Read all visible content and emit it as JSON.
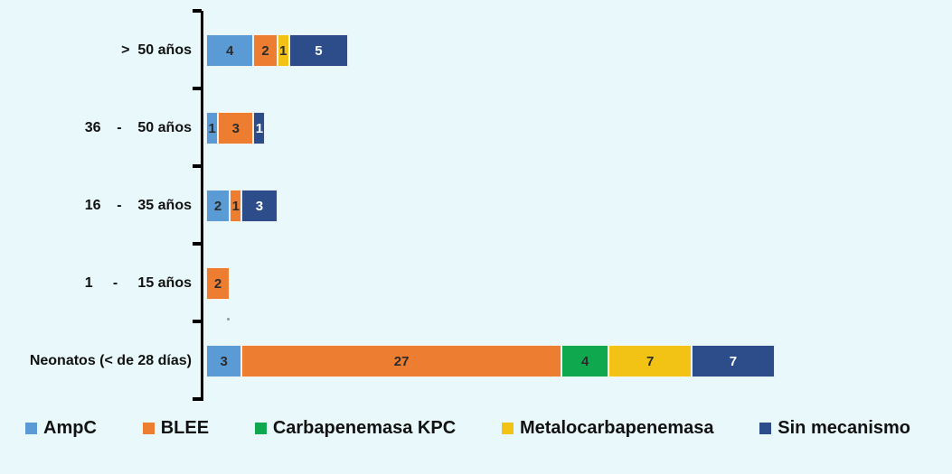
{
  "page": {
    "background": "#E9F8FA"
  },
  "chart_data": {
    "type": "bar",
    "orientation": "horizontal",
    "stacked": true,
    "title": "",
    "xlabel": "",
    "ylabel": "",
    "grid": false,
    "x_axis_visible": false,
    "legend_position": "bottom",
    "categories": [
      "> 50 años",
      "36 - 50 años",
      "16 - 35 años",
      "1 - 15 años",
      "Neonatos (< de 28 días)"
    ],
    "category_display_labels": [
      ">  50 años",
      "36    -    50 años",
      "16    -    35 años",
      "1     -     15 años",
      "Neonatos (< de 28 días)"
    ],
    "series": [
      {
        "name": "AmpC",
        "color": "#5B9BD5",
        "label_color": "#2B2B2B",
        "values": [
          4,
          1,
          2,
          0,
          3
        ]
      },
      {
        "name": "BLEE",
        "color": "#ED7D31",
        "label_color": "#2B2B2B",
        "values": [
          2,
          3,
          1,
          2,
          27
        ]
      },
      {
        "name": "Carbapenemasa KPC",
        "color": "#0FA84F",
        "label_color": "#2B2B2B",
        "values": [
          0,
          0,
          0,
          0,
          4
        ]
      },
      {
        "name": "Metalocarbapenemasa",
        "color": "#F2C215",
        "label_color": "#2B2B2B",
        "values": [
          1,
          0,
          0,
          0,
          7
        ]
      },
      {
        "name": "Sin mecanismo",
        "color": "#2D4D8A",
        "label_color": "#FFFFFF",
        "values": [
          5,
          1,
          3,
          0,
          7
        ]
      }
    ],
    "category_totals": [
      12,
      5,
      6,
      2,
      48
    ],
    "xlim": [
      0,
      48
    ],
    "axis_color": "#000000"
  }
}
